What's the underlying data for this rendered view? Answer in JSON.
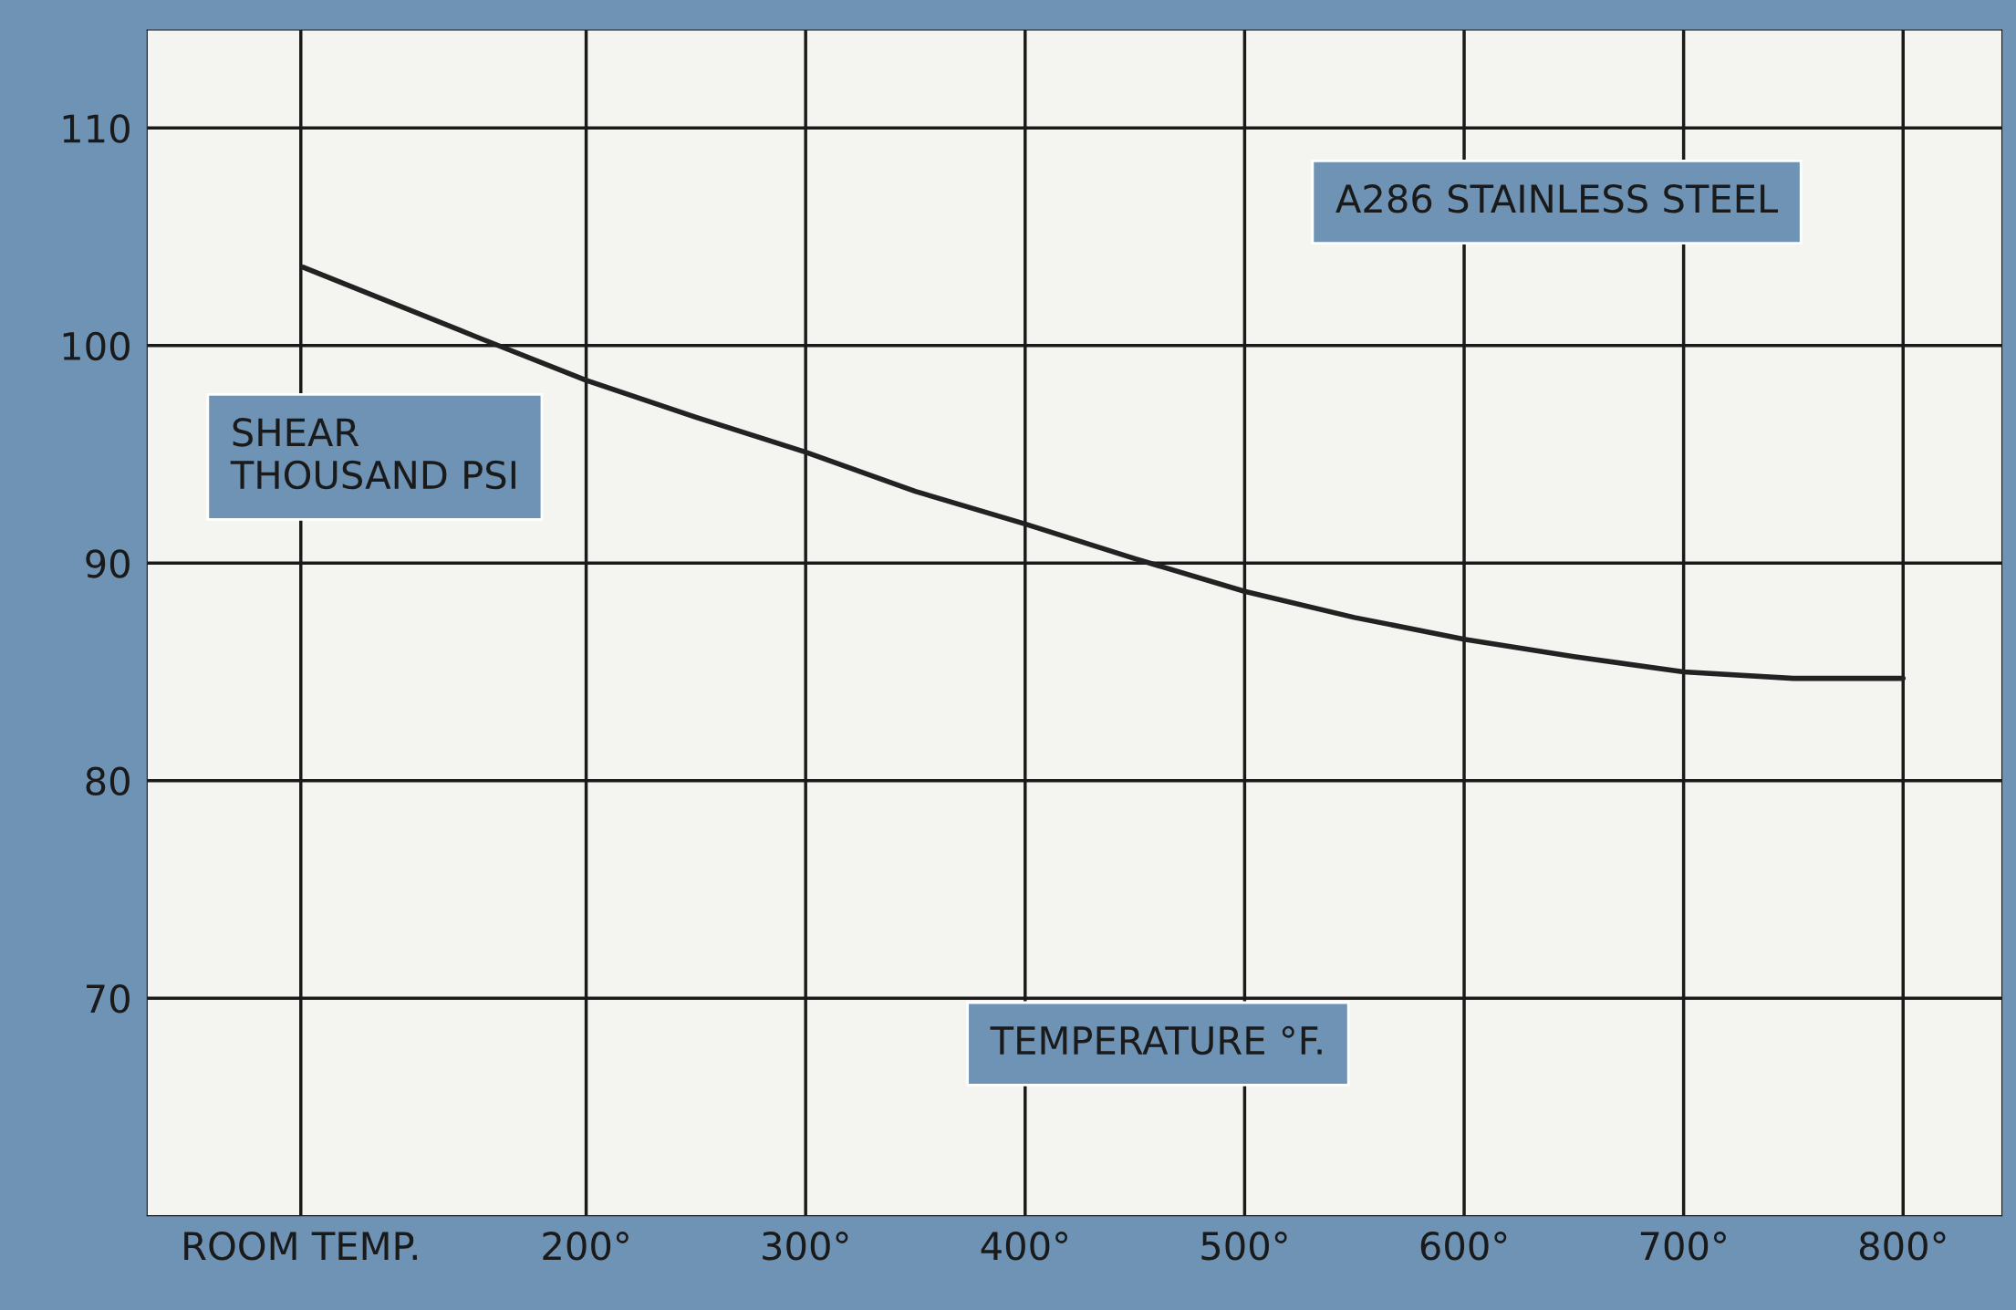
{
  "chart_data": {
    "type": "line",
    "title": "A286 STAINLESS STEEL",
    "xlabel": "TEMPERATURE °F.",
    "ylabel": "SHEAR\nTHOUSAND PSI",
    "series": [
      {
        "color": "#222222",
        "x": [
          71,
          150,
          200,
          250,
          300,
          350,
          400,
          450,
          500,
          550,
          600,
          650,
          700,
          750,
          800
        ],
        "values": [
          103.6,
          100.4,
          98.4,
          96.7,
          95.1,
          93.3,
          91.8,
          90.2,
          88.7,
          87.5,
          86.5,
          85.7,
          85.0,
          84.7,
          84.7
        ]
      }
    ],
    "xlim": [
      0,
      845
    ],
    "ylim": [
      60,
      114.5
    ],
    "xticks": [
      {
        "value": 70,
        "label": "ROOM TEMP."
      },
      {
        "value": 200,
        "label": "200°"
      },
      {
        "value": 300,
        "label": "300°"
      },
      {
        "value": 400,
        "label": "400°"
      },
      {
        "value": 500,
        "label": "500°"
      },
      {
        "value": 600,
        "label": "600°"
      },
      {
        "value": 700,
        "label": "700°"
      },
      {
        "value": 800,
        "label": "800°"
      }
    ],
    "yticks": [
      70,
      80,
      90,
      100,
      110
    ],
    "grid": true,
    "line_style": "solid",
    "marker": "none"
  }
}
